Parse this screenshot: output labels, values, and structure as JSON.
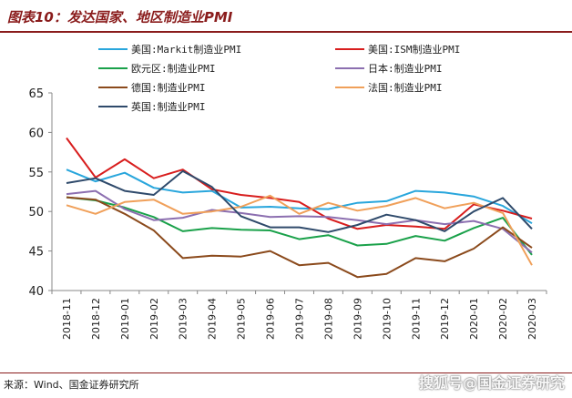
{
  "header": {
    "title": "图表10：发达国家、地区制造业PMI"
  },
  "footer": {
    "source": "来源：Wind、国金证券研究所",
    "watermark": "搜狐号@国金证券研究"
  },
  "chart_data": {
    "type": "line",
    "title": "图表10：发达国家、地区制造业PMI",
    "xlabel": "",
    "ylabel": "",
    "ylim": [
      40,
      65
    ],
    "yticks": [
      40,
      45,
      50,
      55,
      60,
      65
    ],
    "grid": false,
    "legend_position": "top",
    "x": [
      "2018-11",
      "2018-12",
      "2019-01",
      "2019-02",
      "2019-03",
      "2019-04",
      "2019-05",
      "2019-06",
      "2019-07",
      "2019-08",
      "2019-09",
      "2019-10",
      "2019-11",
      "2019-12",
      "2020-01",
      "2020-02",
      "2020-03"
    ],
    "series": [
      {
        "name": "美国:Markit制造业PMI",
        "color": "#29a6dc",
        "values": [
          55.3,
          53.8,
          54.9,
          53.0,
          52.4,
          52.6,
          50.5,
          50.6,
          50.4,
          50.3,
          51.1,
          51.3,
          52.6,
          52.4,
          51.9,
          50.7,
          48.5
        ]
      },
      {
        "name": "美国:ISM制造业PMI",
        "color": "#d81e1e",
        "values": [
          59.3,
          54.3,
          56.6,
          54.2,
          55.3,
          52.8,
          52.1,
          51.7,
          51.2,
          49.1,
          47.8,
          48.3,
          48.1,
          47.8,
          50.9,
          50.1,
          49.1
        ]
      },
      {
        "name": "欧元区:制造业PMI",
        "color": "#1aa14a",
        "values": [
          51.8,
          51.4,
          50.5,
          49.3,
          47.5,
          47.9,
          47.7,
          47.6,
          46.5,
          47.0,
          45.7,
          45.9,
          46.9,
          46.3,
          47.9,
          49.2,
          44.5
        ]
      },
      {
        "name": "日本:制造业PMI",
        "color": "#8c6fb0",
        "values": [
          52.2,
          52.6,
          50.3,
          48.9,
          49.2,
          50.2,
          49.8,
          49.3,
          49.4,
          49.3,
          48.9,
          48.4,
          48.9,
          48.4,
          48.8,
          47.8,
          44.8
        ]
      },
      {
        "name": "德国:制造业PMI",
        "color": "#8b4a1c",
        "values": [
          51.8,
          51.5,
          49.7,
          47.6,
          44.1,
          44.4,
          44.3,
          45.0,
          43.2,
          43.5,
          41.7,
          42.1,
          44.1,
          43.7,
          45.3,
          48.0,
          45.4
        ]
      },
      {
        "name": "法国:制造业PMI",
        "color": "#f0a05a",
        "values": [
          50.8,
          49.7,
          51.2,
          51.5,
          49.7,
          50.0,
          50.6,
          52.0,
          49.7,
          51.1,
          50.1,
          50.7,
          51.7,
          50.4,
          51.1,
          49.8,
          43.2
        ]
      },
      {
        "name": "英国:制造业PMI",
        "color": "#2f4a6b",
        "values": [
          53.6,
          54.2,
          52.6,
          52.1,
          55.1,
          53.1,
          49.4,
          48.0,
          48.0,
          47.4,
          48.3,
          49.6,
          48.9,
          47.5,
          50.0,
          51.7,
          47.8
        ]
      }
    ]
  }
}
